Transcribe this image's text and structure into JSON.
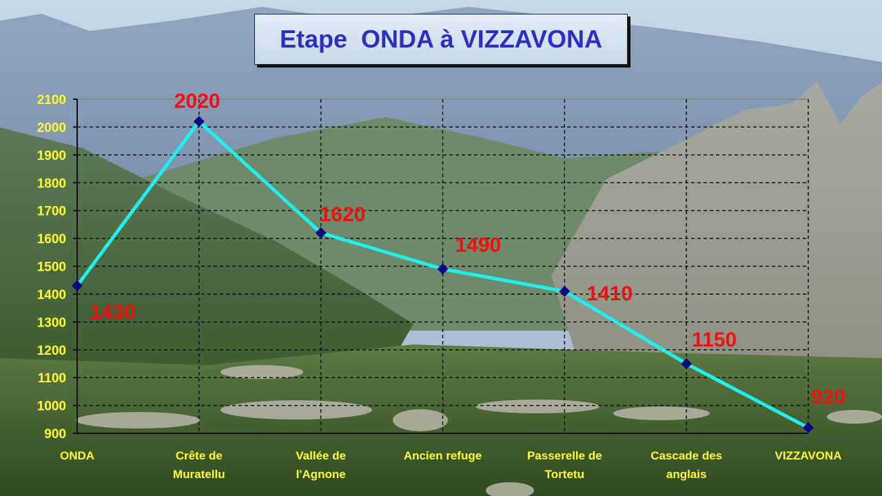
{
  "chart_data": {
    "type": "line",
    "title": "Etape  ONDA à VIZZAVONA",
    "categories": [
      [
        "ONDA"
      ],
      [
        "Crête de",
        "Muratellu"
      ],
      [
        "Vallée de",
        "l'Agnone"
      ],
      [
        "Ancien refuge"
      ],
      [
        "Passerelle de",
        "Tortetu"
      ],
      [
        "Cascade des",
        "anglais"
      ],
      [
        "VIZZAVONA"
      ]
    ],
    "values": [
      1430,
      2020,
      1620,
      1490,
      1410,
      1150,
      920
    ],
    "data_labels": [
      "1430",
      "2020",
      "1620",
      "1490",
      "1410",
      "1150",
      "920"
    ],
    "ylim": [
      900,
      2100
    ],
    "yticks": [
      "900",
      "1000",
      "1100",
      "1200",
      "1300",
      "1400",
      "1500",
      "1600",
      "1700",
      "1800",
      "1900",
      "2000",
      "2100"
    ],
    "xlabel": "",
    "ylabel": "",
    "grid": "dashed horizontal and vertical",
    "colors": {
      "line": "#22eeee",
      "marker": "#0a0a80",
      "data_label": "#ee1111",
      "tick_label": "#ffff33",
      "title": "#2b2fc4"
    }
  }
}
